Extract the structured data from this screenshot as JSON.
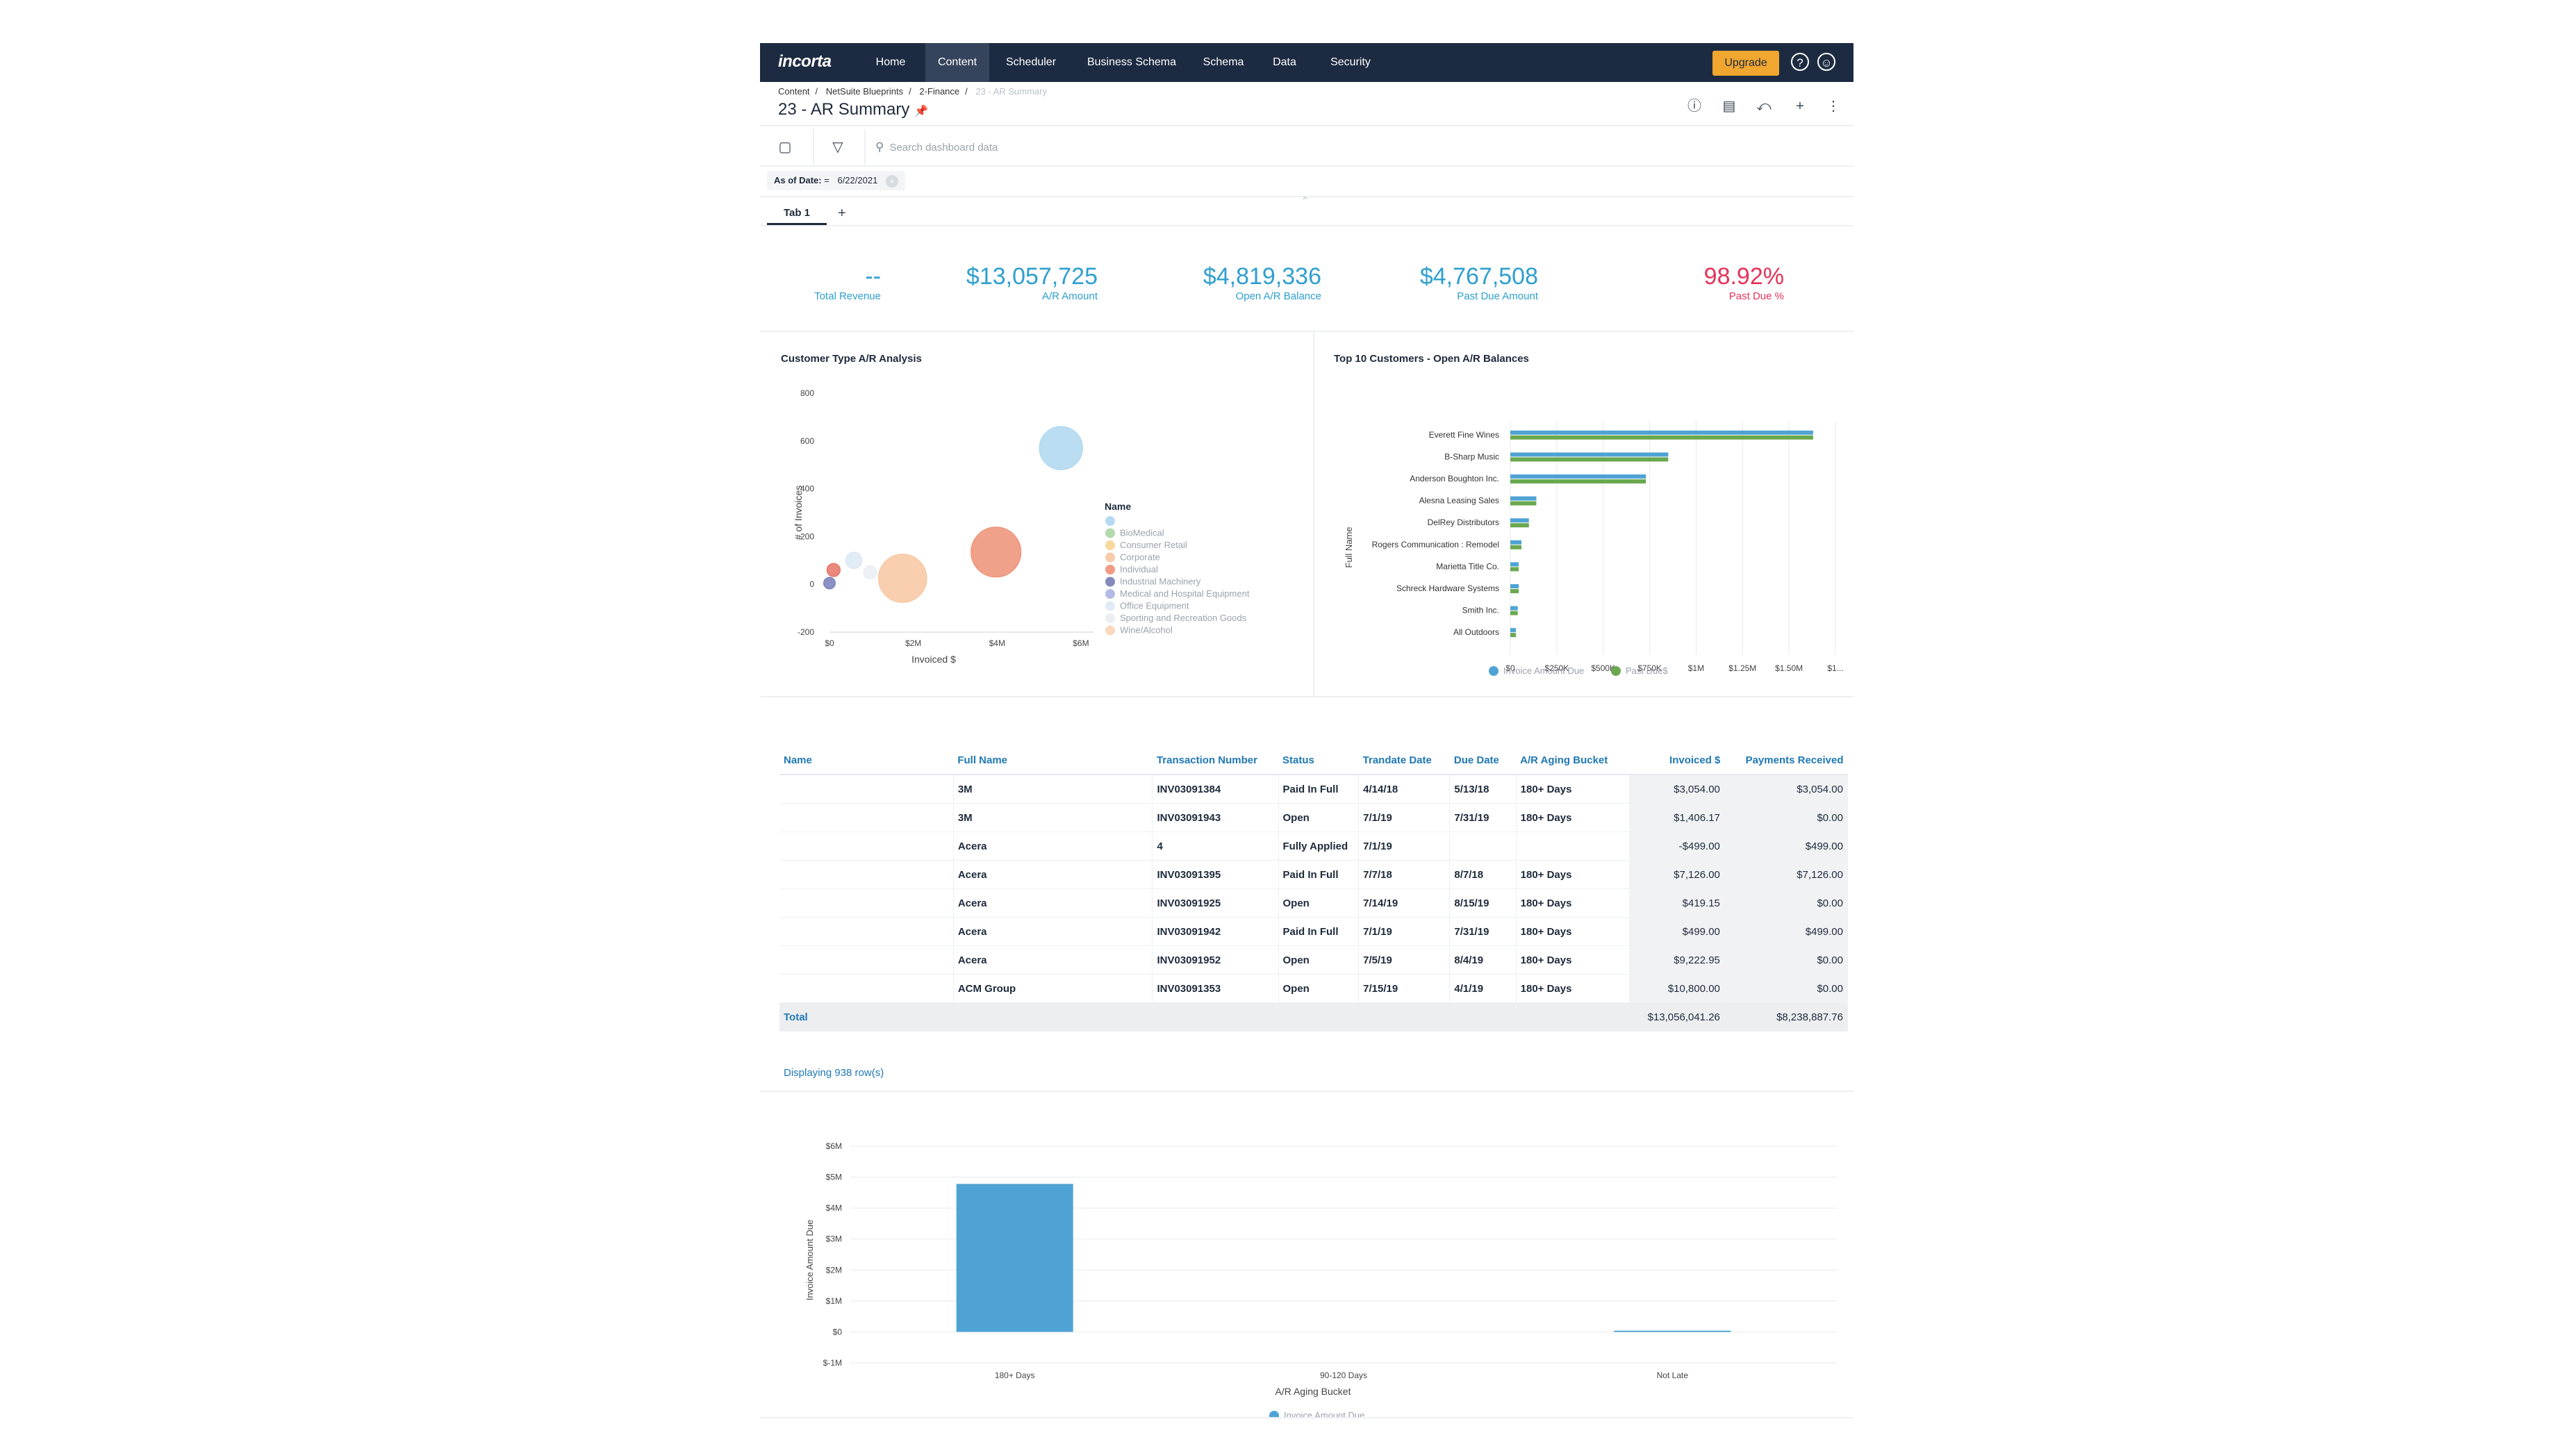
{
  "nav": {
    "logo": "incorta",
    "items": [
      "Home",
      "Content",
      "Scheduler",
      "Business Schema",
      "Schema",
      "Data",
      "Security"
    ],
    "active": "Content",
    "upgrade": "Upgrade"
  },
  "breadcrumb": [
    "Content",
    "NetSuite Blueprints",
    "2-Finance",
    "23 - AR Summary"
  ],
  "page": {
    "title": "23 - AR Summary"
  },
  "toolbar": {
    "search_placeholder": "Search dashboard data"
  },
  "filter": {
    "label": "As of Date:",
    "op": "=",
    "value": "6/22/2021"
  },
  "tabs": {
    "tab1": "Tab 1",
    "add": "+"
  },
  "kpis": [
    {
      "value": "--",
      "label": "Total Revenue"
    },
    {
      "value": "$13,057,725",
      "label": "A/R Amount"
    },
    {
      "value": "$4,819,336",
      "label": "Open A/R Balance"
    },
    {
      "value": "$4,767,508",
      "label": "Past Due Amount"
    },
    {
      "value": "98.92%",
      "label": "Past Due %"
    }
  ],
  "chart_data": [
    {
      "type": "scatter",
      "title": "Customer Type A/R Analysis",
      "xlabel": "Invoiced $",
      "ylabel": "# of Invoices",
      "xticks": [
        "$0",
        "$2M",
        "$4M",
        "$6M"
      ],
      "yticks": [
        "800",
        "600",
        "400",
        "200",
        "0",
        "-200"
      ],
      "xlim": [
        0,
        6500000
      ],
      "ylim": [
        -200,
        800
      ],
      "legend_title": "Name",
      "series": [
        {
          "name": "",
          "color": "#a9d4ef",
          "x": 5700000,
          "y": 570,
          "size": 26
        },
        {
          "name": "BioMedical",
          "color": "#a6d49f",
          "x": 0,
          "y": 0,
          "size": 0
        },
        {
          "name": "Consumer Retail",
          "color": "#f6d18c",
          "x": 0,
          "y": 0,
          "size": 0
        },
        {
          "name": "Corporate",
          "color": "#f7c39b",
          "x": 1800000,
          "y": 25,
          "size": 29
        },
        {
          "name": "Individual",
          "color": "#ec8a6c",
          "x": 4100000,
          "y": 135,
          "size": 30
        },
        {
          "name": "Industrial Machinery",
          "color": "#6e76b4",
          "x": 0,
          "y": 5,
          "size": 7
        },
        {
          "name": "Medical and Hospital Equipment",
          "color": "#a6aee0",
          "x": 0,
          "y": 0,
          "size": 0
        },
        {
          "name": "Office Equipment",
          "color": "#dbe7f3",
          "x": 600000,
          "y": 100,
          "size": 10
        },
        {
          "name": "Sporting and Recreation Goods",
          "color": "#e8ecf1",
          "x": 1000000,
          "y": 50,
          "size": 8
        },
        {
          "name": "Wine/Alcohol",
          "color": "#f9d2b3",
          "x": 0,
          "y": 0,
          "size": 0
        },
        {
          "name": "",
          "color": "#e36a5a",
          "x": 100000,
          "y": 60,
          "size": 8
        }
      ]
    },
    {
      "type": "bar",
      "orientation": "horizontal",
      "title": "Top 10 Customers - Open A/R Balances",
      "ylabel": "Full Name",
      "categories": [
        "Everett Fine Wines",
        "B-Sharp Music",
        "Anderson Boughton Inc.",
        "Alesna Leasing Sales",
        "DelRey Distributors",
        "Rogers Communication : Remodel",
        "Marietta Title Co.",
        "Schreck Hardware Systems",
        "Smith Inc.",
        "All Outdoors"
      ],
      "xticks": [
        "$0",
        "$250K",
        "$500K",
        "$750K",
        "$1M",
        "$1.25M",
        "$1.50M",
        "$1..."
      ],
      "xlim": [
        0,
        1750000
      ],
      "series": [
        {
          "name": "Invoice Amount Due",
          "color": "#4fa3d4",
          "values": [
            1630000,
            850000,
            730000,
            140000,
            100000,
            60000,
            45000,
            45000,
            40000,
            30000
          ]
        },
        {
          "name": "Past Due$",
          "color": "#6aa84f",
          "values": [
            1630000,
            850000,
            730000,
            140000,
            100000,
            60000,
            45000,
            45000,
            40000,
            30000
          ]
        }
      ]
    },
    {
      "type": "bar",
      "title": "",
      "xlabel": "A/R Aging Bucket",
      "ylabel": "Invoice Amount Due",
      "categories": [
        "180+ Days",
        "90-120 Days",
        "Not Late"
      ],
      "yticks": [
        "$6M",
        "$5M",
        "$4M",
        "$3M",
        "$2M",
        "$1M",
        "$0",
        "$-1M"
      ],
      "ylim": [
        -1000000,
        6000000
      ],
      "series": [
        {
          "name": "Invoice Amount Due",
          "color": "#4fa3d4",
          "values": [
            4780000,
            0,
            40000
          ]
        }
      ]
    }
  ],
  "table": {
    "columns": [
      "Name",
      "Full Name",
      "Transaction Number",
      "Status",
      "Trandate Date",
      "Due Date",
      "A/R Aging Bucket",
      "Invoiced $",
      "Payments Received"
    ],
    "rows": [
      [
        "",
        "3M",
        "INV03091384",
        "Paid In Full",
        "4/14/18",
        "5/13/18",
        "180+ Days",
        "$3,054.00",
        "$3,054.00"
      ],
      [
        "",
        "3M",
        "INV03091943",
        "Open",
        "7/1/19",
        "7/31/19",
        "180+ Days",
        "$1,406.17",
        "$0.00"
      ],
      [
        "",
        "Acera",
        "4",
        "Fully Applied",
        "7/1/19",
        "",
        "",
        "-$499.00",
        "$499.00"
      ],
      [
        "",
        "Acera",
        "INV03091395",
        "Paid In Full",
        "7/7/18",
        "8/7/18",
        "180+ Days",
        "$7,126.00",
        "$7,126.00"
      ],
      [
        "",
        "Acera",
        "INV03091925",
        "Open",
        "7/14/19",
        "8/15/19",
        "180+ Days",
        "$419.15",
        "$0.00"
      ],
      [
        "",
        "Acera",
        "INV03091942",
        "Paid In Full",
        "7/1/19",
        "7/31/19",
        "180+ Days",
        "$499.00",
        "$499.00"
      ],
      [
        "",
        "Acera",
        "INV03091952",
        "Open",
        "7/5/19",
        "8/4/19",
        "180+ Days",
        "$9,222.95",
        "$0.00"
      ],
      [
        "",
        "ACM Group",
        "INV03091353",
        "Open",
        "7/15/19",
        "4/1/19",
        "180+ Days",
        "$10,800.00",
        "$0.00"
      ]
    ],
    "total": {
      "label": "Total",
      "invoiced": "$13,056,041.26",
      "payments": "$8,238,887.76"
    },
    "displaying": "Displaying 938 row(s)"
  }
}
